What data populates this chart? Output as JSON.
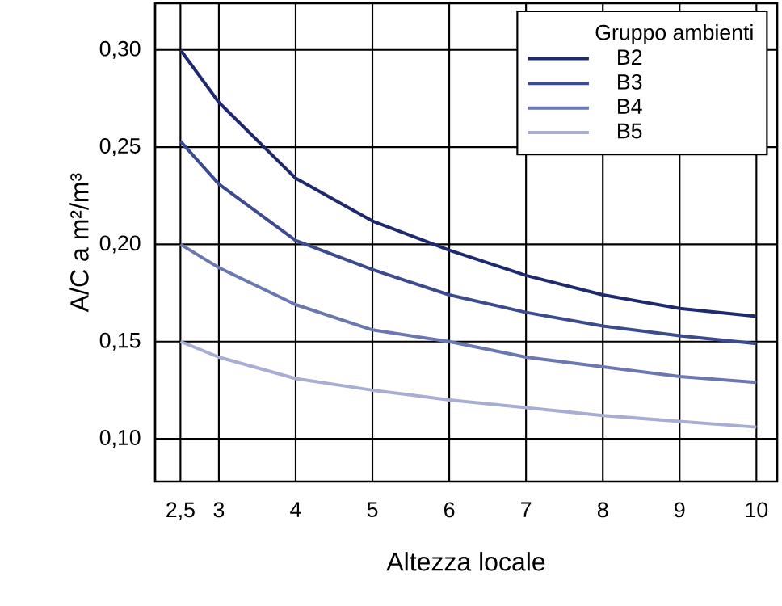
{
  "chart_data": {
    "type": "line",
    "xlabel": "Altezza locale",
    "ylabel": "A/C a m²/m³",
    "legend_title": "Gruppo ambienti",
    "x": [
      2.5,
      3,
      4,
      5,
      6,
      7,
      8,
      9,
      10
    ],
    "series": [
      {
        "name": "B2",
        "color": "#1f2a6e",
        "values": [
          0.3,
          0.273,
          0.234,
          0.212,
          0.197,
          0.184,
          0.174,
          0.167,
          0.163
        ]
      },
      {
        "name": "B3",
        "color": "#3c4a8e",
        "values": [
          0.253,
          0.231,
          0.202,
          0.187,
          0.174,
          0.165,
          0.158,
          0.153,
          0.149
        ]
      },
      {
        "name": "B4",
        "color": "#6b77b0",
        "values": [
          0.2,
          0.188,
          0.169,
          0.156,
          0.15,
          0.142,
          0.137,
          0.132,
          0.129
        ]
      },
      {
        "name": "B5",
        "color": "#a8aed3",
        "values": [
          0.15,
          0.142,
          0.131,
          0.125,
          0.12,
          0.116,
          0.112,
          0.109,
          0.106
        ]
      }
    ],
    "xlim": [
      2.17,
      10.27
    ],
    "ylim": [
      0.078,
      0.324
    ],
    "xticks": [
      {
        "value": 2.5,
        "label": "2,5"
      },
      3,
      4,
      5,
      6,
      7,
      8,
      9,
      10
    ],
    "yticks": [
      {
        "value": 0.1,
        "label": "0,10"
      },
      {
        "value": 0.15,
        "label": "0,15"
      },
      {
        "value": 0.2,
        "label": "0,20"
      },
      {
        "value": 0.25,
        "label": "0,25"
      },
      {
        "value": 0.3,
        "label": "0,30"
      }
    ],
    "grid": true,
    "legend": "top right"
  }
}
